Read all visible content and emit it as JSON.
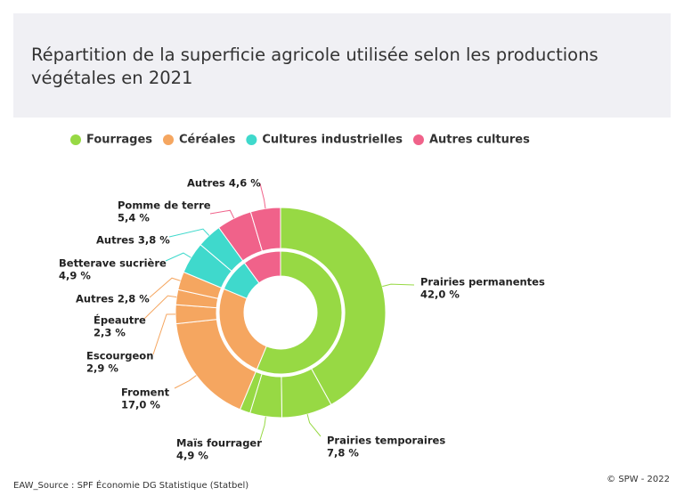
{
  "chart_data": {
    "type": "sunburst",
    "title": "Répartition de la superficie agricole utilisée selon les productions végétales en 2021",
    "source": "EAW_Source : SPF Économie DG Statistique (Statbel)",
    "credit": "© SPW - 2022",
    "series": [
      {
        "name": "Fourrages",
        "color": "#97d944",
        "categories": [
          "Prairies permanentes",
          "Prairies temporaires",
          "Maïs fourrager",
          null
        ],
        "values": [
          42.0,
          7.8,
          4.9,
          1.6
        ],
        "value_labels": [
          "42,0 %",
          "7,8 %",
          "4,9 %",
          null
        ]
      },
      {
        "name": "Céréales",
        "color": "#f5a660",
        "categories": [
          "Froment",
          "Escourgeon",
          "Épeautre",
          "Autres"
        ],
        "values": [
          17.0,
          2.9,
          2.3,
          2.8
        ],
        "value_labels": [
          "17,0 %",
          "2,9 %",
          "2,3 %",
          "2,8 %"
        ]
      },
      {
        "name": "Cultures industrielles",
        "color": "#3fd9cc",
        "categories": [
          "Betterave sucrière",
          "Autres"
        ],
        "values": [
          4.9,
          3.8
        ],
        "value_labels": [
          "4,9 %",
          "3,8 %"
        ]
      },
      {
        "name": "Autres cultures",
        "color": "#f0628a",
        "categories": [
          "Pomme de terre",
          "Autres"
        ],
        "values": [
          5.4,
          4.6
        ],
        "value_labels": [
          "5,4 %",
          "4,6 %"
        ]
      }
    ]
  }
}
